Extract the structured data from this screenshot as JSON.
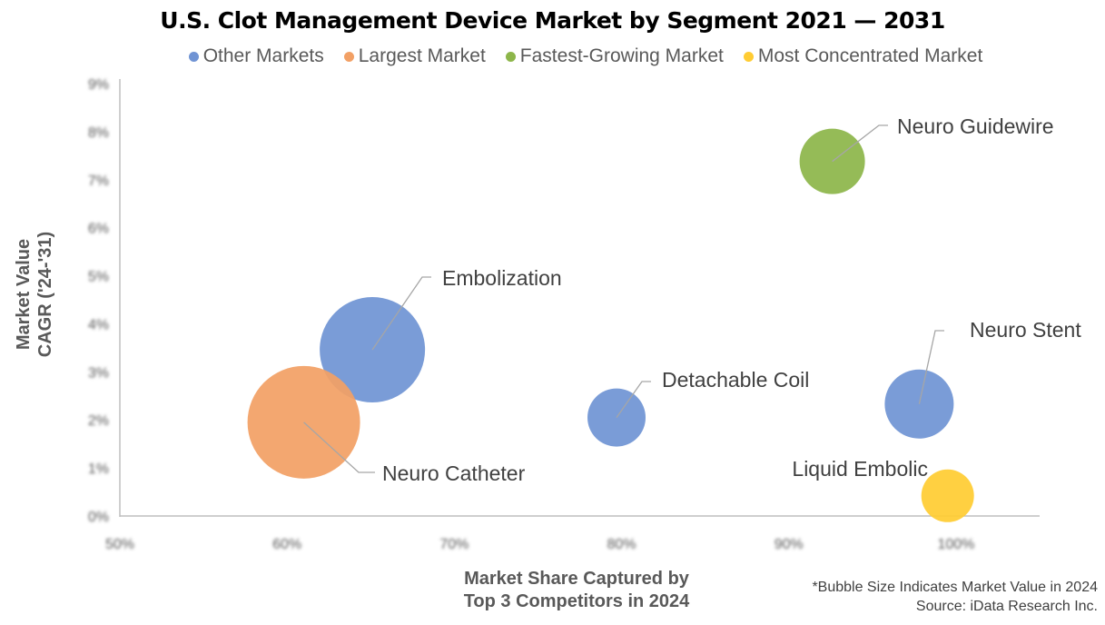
{
  "chart_data": {
    "type": "bubble",
    "title": "U.S. Clot Management Device Market by Segment 2021 — 2031",
    "xlabel": [
      "Market Share Captured by",
      "Top 3 Competitors in 2024"
    ],
    "ylabel": [
      "Market Value",
      "CAGR ('24-'31)"
    ],
    "xlim": [
      50,
      105
    ],
    "ylim": [
      0,
      9
    ],
    "xticks": [
      "50%",
      "60%",
      "70%",
      "80%",
      "90%",
      "100%"
    ],
    "yticks": [
      "0%",
      "1%",
      "2%",
      "3%",
      "4%",
      "5%",
      "6%",
      "7%",
      "8%",
      "9%"
    ],
    "legend": [
      {
        "name": "Other Markets",
        "color": "#7094D4"
      },
      {
        "name": "Largest Market",
        "color": "#F2A065"
      },
      {
        "name": "Fastest-Growing Market",
        "color": "#8DB64A"
      },
      {
        "name": "Most Concentrated Market",
        "color": "#FFCC33"
      }
    ],
    "points": [
      {
        "label": "Embolization",
        "x": 65.1,
        "y": 3.46,
        "size": 58,
        "category": 0
      },
      {
        "label": "Neuro Catheter",
        "x": 61.0,
        "y": 1.95,
        "size": 62,
        "category": 1
      },
      {
        "label": "Detachable Coil",
        "x": 79.7,
        "y": 2.05,
        "size": 32,
        "category": 0
      },
      {
        "label": "Neuro Guidewire",
        "x": 92.6,
        "y": 7.38,
        "size": 36,
        "category": 2
      },
      {
        "label": "Neuro Stent",
        "x": 97.8,
        "y": 2.33,
        "size": 38,
        "category": 0
      },
      {
        "label": "Liquid Embolic",
        "x": 99.5,
        "y": 0.42,
        "size": 29,
        "category": 3
      }
    ],
    "notes": [
      "*Bubble Size Indicates Market Value in 2024",
      "Source: iData Research Inc."
    ]
  }
}
